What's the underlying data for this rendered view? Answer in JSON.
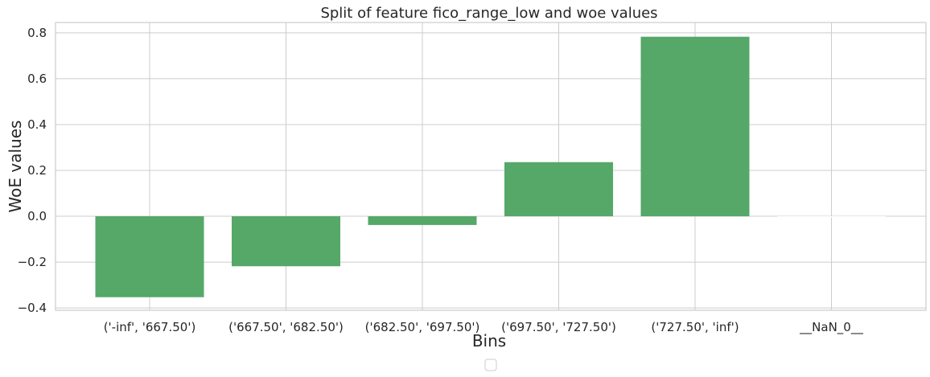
{
  "chart_data": {
    "type": "bar",
    "title": "Split of feature fico_range_low and woe values",
    "xlabel": "Bins",
    "ylabel": "WoE values",
    "categories": [
      "('-inf', '667.50')",
      "('667.50', '682.50')",
      "('682.50', '697.50')",
      "('697.50', '727.50')",
      "('727.50', 'inf')",
      "__NaN_0__"
    ],
    "values": [
      -0.353,
      -0.218,
      -0.038,
      0.236,
      0.783,
      0.0
    ],
    "ylim": [
      -0.41,
      0.845
    ],
    "yticks": [
      -0.4,
      -0.2,
      0.0,
      0.2,
      0.4,
      0.6,
      0.8
    ],
    "ytick_labels": [
      "−0.4",
      "−0.2",
      "0.0",
      "0.2",
      "0.4",
      "0.6",
      "0.8"
    ],
    "grid": true,
    "legend": "bottom-center",
    "colors": {
      "bar": "#55a868",
      "nan_bar": "#ffffff"
    }
  }
}
